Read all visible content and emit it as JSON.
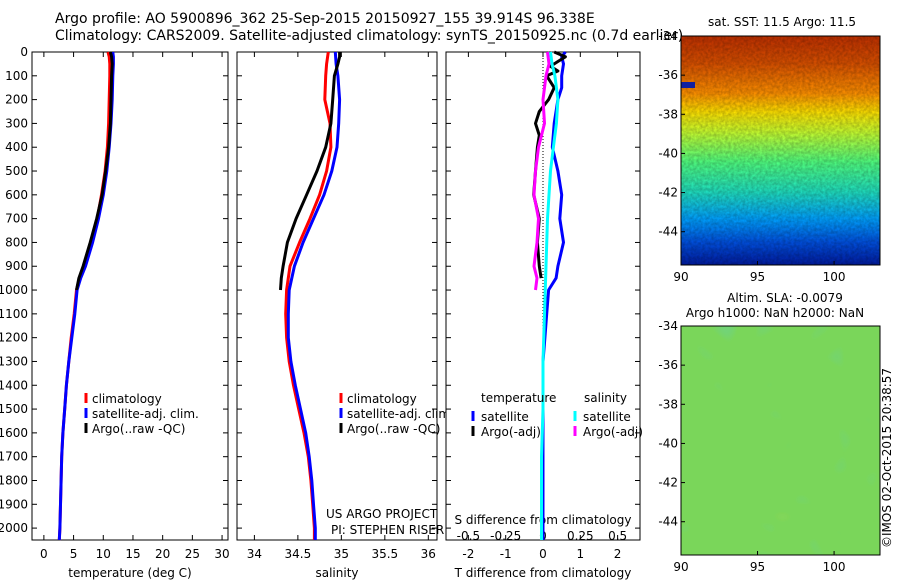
{
  "header": {
    "line1": "Argo profile: AO 5900896_362 25-Sep-2015 20150927_155 39.914S 96.338E",
    "line2": "Climatology: CARS2009. Satellite-adjusted climatology: synTS_20150925.nc (0.7d earlier)"
  },
  "credits": {
    "project": "US ARGO PROJECT",
    "pi": "PI: STEPHEN RISER",
    "imos": "©IMOS 02-Oct-2015 20:38:57"
  },
  "colors": {
    "climatology": "#ff0000",
    "satellite": "#0000ff",
    "argo": "#000000",
    "sal_satellite": "#00ffff",
    "sal_argo": "#ff00ff"
  },
  "chart_data": [
    {
      "type": "line",
      "xlabel": "temperature (deg C)",
      "ylabel": "",
      "xlim": [
        -2,
        31
      ],
      "ylim": [
        2050,
        0
      ],
      "xticks": [
        0,
        5,
        10,
        15,
        20,
        25,
        30
      ],
      "yticks": [
        0,
        100,
        200,
        300,
        400,
        500,
        600,
        700,
        800,
        900,
        1000,
        1100,
        1200,
        1300,
        1400,
        1500,
        1600,
        1700,
        1800,
        1900,
        2000
      ],
      "legend": {
        "placement": "bottom-right",
        "entries": [
          "climatology",
          "satellite-adj. clim.",
          "Argo(..raw -QC)"
        ]
      },
      "series": [
        {
          "name": "climatology",
          "color": "#ff0000",
          "depth": [
            0,
            20,
            50,
            100,
            200,
            300,
            400,
            500,
            600,
            700,
            800,
            900,
            950,
            1000,
            1100,
            1200,
            1300,
            1400,
            1500,
            1600,
            1700,
            1800,
            1900,
            2000,
            2050
          ],
          "values": [
            10.8,
            11.0,
            11.1,
            11.1,
            11.0,
            10.9,
            10.7,
            10.3,
            9.7,
            9.0,
            8.0,
            6.8,
            6.0,
            5.5,
            5.1,
            4.6,
            4.2,
            3.8,
            3.5,
            3.2,
            3.0,
            2.9,
            2.8,
            2.7,
            2.6
          ]
        },
        {
          "name": "satellite-adj. clim.",
          "color": "#0000ff",
          "depth": [
            0,
            20,
            50,
            100,
            200,
            300,
            400,
            500,
            600,
            700,
            800,
            900,
            950,
            1000,
            1100,
            1200,
            1300,
            1400,
            1500,
            1600,
            1700,
            1800,
            1900,
            2000,
            2050
          ],
          "values": [
            11.6,
            11.7,
            11.7,
            11.6,
            11.5,
            11.3,
            11.0,
            10.6,
            10.0,
            9.2,
            8.2,
            7.0,
            6.2,
            5.6,
            5.2,
            4.7,
            4.2,
            3.8,
            3.5,
            3.2,
            3.0,
            2.9,
            2.8,
            2.7,
            2.6
          ]
        },
        {
          "name": "Argo(..raw -QC)",
          "color": "#000000",
          "depth": [
            0,
            20,
            50,
            100,
            200,
            300,
            400,
            500,
            600,
            700,
            800,
            900,
            950,
            1000
          ],
          "values": [
            11.2,
            11.4,
            11.5,
            11.4,
            11.3,
            11.2,
            10.9,
            10.4,
            9.8,
            8.9,
            7.8,
            6.6,
            5.9,
            5.5
          ]
        }
      ]
    },
    {
      "type": "line",
      "xlabel": "salinity",
      "ylabel": "",
      "xlim": [
        33.8,
        36.1
      ],
      "ylim": [
        2050,
        0
      ],
      "xticks": [
        34,
        34.5,
        35,
        35.5,
        36
      ],
      "legend": {
        "placement": "bottom-right",
        "entries": [
          "climatology",
          "satellite-adj. clim.",
          "Argo(..raw -QC)"
        ]
      },
      "series": [
        {
          "name": "climatology",
          "color": "#ff0000",
          "depth": [
            0,
            50,
            100,
            200,
            300,
            400,
            500,
            600,
            700,
            800,
            900,
            1000,
            1100,
            1200,
            1300,
            1400,
            1500,
            1600,
            1700,
            1800,
            1900,
            2000,
            2050
          ],
          "values": [
            34.85,
            34.83,
            34.82,
            34.81,
            34.87,
            34.88,
            34.83,
            34.75,
            34.64,
            34.52,
            34.41,
            34.37,
            34.36,
            34.37,
            34.4,
            34.45,
            34.51,
            34.57,
            34.62,
            34.65,
            34.67,
            34.69,
            34.69
          ]
        },
        {
          "name": "satellite-adj. clim.",
          "color": "#0000ff",
          "depth": [
            0,
            50,
            100,
            200,
            300,
            400,
            500,
            600,
            700,
            800,
            900,
            1000,
            1100,
            1200,
            1300,
            1400,
            1500,
            1600,
            1700,
            1800,
            1900,
            2000,
            2050
          ],
          "values": [
            34.93,
            34.94,
            34.96,
            34.98,
            34.97,
            34.95,
            34.89,
            34.8,
            34.68,
            34.56,
            34.46,
            34.4,
            34.39,
            34.39,
            34.42,
            34.47,
            34.53,
            34.59,
            34.63,
            34.66,
            34.68,
            34.7,
            34.7
          ]
        },
        {
          "name": "Argo(..raw -QC)",
          "color": "#000000",
          "depth": [
            0,
            20,
            50,
            100,
            200,
            300,
            400,
            500,
            600,
            700,
            800,
            900,
            950,
            1000
          ],
          "values": [
            34.98,
            34.98,
            34.96,
            34.92,
            34.9,
            34.88,
            34.82,
            34.72,
            34.6,
            34.48,
            34.38,
            34.33,
            34.31,
            34.3
          ]
        }
      ]
    },
    {
      "type": "line",
      "xlabel": "T difference from climatology",
      "xlabel_top": "S difference from climatology",
      "xlim": [
        -2.6,
        2.6
      ],
      "ylim": [
        2050,
        0
      ],
      "xticks": [
        -2,
        -1,
        0,
        1,
        2
      ],
      "xticks_s": [
        -0.5,
        -0.25,
        0,
        0.25,
        0.5
      ],
      "xticks_s_labels": [
        "-0.5",
        "-0.25",
        "0",
        "0.25",
        "0.5"
      ],
      "legend": {
        "placement": "bottom",
        "groups": [
          {
            "title": "temperature",
            "entries": [
              "satellite",
              "Argo(-adj)"
            ]
          },
          {
            "title": "salinity",
            "entries": [
              "satellite",
              "Argo(-adj)"
            ]
          }
        ]
      },
      "series": [
        {
          "name": "satellite",
          "group": "temperature",
          "color": "#0000ff",
          "depth": [
            0,
            20,
            50,
            100,
            150,
            200,
            300,
            400,
            500,
            600,
            700,
            800,
            900,
            950,
            1000,
            1100,
            1200,
            1300,
            1500,
            2000,
            2050
          ],
          "values": [
            0.6,
            0.5,
            0.55,
            0.5,
            0.5,
            0.4,
            0.3,
            0.25,
            0.4,
            0.5,
            0.45,
            0.55,
            0.4,
            0.35,
            0.15,
            0.1,
            0.05,
            0.0,
            0.0,
            0.0,
            0.0
          ]
        },
        {
          "name": "Argo(-adj)",
          "group": "temperature",
          "color": "#000000",
          "depth": [
            0,
            20,
            40,
            60,
            80,
            100,
            150,
            200,
            250,
            300,
            350,
            400,
            500,
            600,
            700,
            800,
            900,
            950
          ],
          "values": [
            0.3,
            0.6,
            0.4,
            0.2,
            0.4,
            0.1,
            0.3,
            0.15,
            -0.1,
            -0.2,
            -0.1,
            -0.15,
            -0.2,
            -0.25,
            -0.1,
            -0.15,
            -0.1,
            -0.05
          ]
        },
        {
          "name": "satellite",
          "group": "salinity",
          "color": "#00ffff",
          "depth": [
            0,
            50,
            100,
            200,
            300,
            400,
            500,
            700,
            900,
            1100,
            1300,
            1500,
            1700,
            1900,
            2050
          ],
          "values": [
            0.05,
            0.06,
            0.08,
            0.1,
            0.09,
            0.07,
            0.05,
            0.03,
            0.02,
            0.01,
            0.0,
            0.0,
            -0.01,
            -0.01,
            -0.01
          ]
        },
        {
          "name": "Argo(-adj)",
          "group": "salinity",
          "color": "#ff00ff",
          "depth": [
            0,
            50,
            100,
            200,
            300,
            400,
            500,
            600,
            700,
            800,
            900,
            950,
            1000
          ],
          "values": [
            0.03,
            0.04,
            0.02,
            0.0,
            0.01,
            -0.03,
            -0.05,
            -0.06,
            -0.03,
            -0.04,
            -0.06,
            -0.04,
            -0.05
          ]
        }
      ]
    },
    {
      "type": "heatmap",
      "title": "sat. SST: 11.5 Argo: 11.5",
      "xlim": [
        90,
        103
      ],
      "ylim": [
        -45.7,
        -34
      ],
      "xticks": [
        90,
        95,
        100
      ],
      "yticks": [
        -34,
        -36,
        -38,
        -40,
        -42,
        -44
      ],
      "colormap_stops": [
        "#00007f",
        "#0050ff",
        "#00c0ff",
        "#40ffb0",
        "#a0ff40",
        "#ffe000",
        "#ff8000",
        "#c03000"
      ],
      "note": "SST field cooling southward"
    },
    {
      "type": "heatmap",
      "title": "Altim. SLA: -0.0079",
      "subtitle": "Argo h1000: NaN h2000: NaN",
      "xlim": [
        90,
        103
      ],
      "ylim": [
        -45.7,
        -34
      ],
      "xticks": [
        90,
        95,
        100
      ],
      "yticks": [
        -34,
        -36,
        -38,
        -40,
        -42,
        -44
      ],
      "colormap_stops": [
        "#00b0b0",
        "#40d080",
        "#80e040",
        "#e0e020",
        "#ffa000"
      ]
    }
  ]
}
